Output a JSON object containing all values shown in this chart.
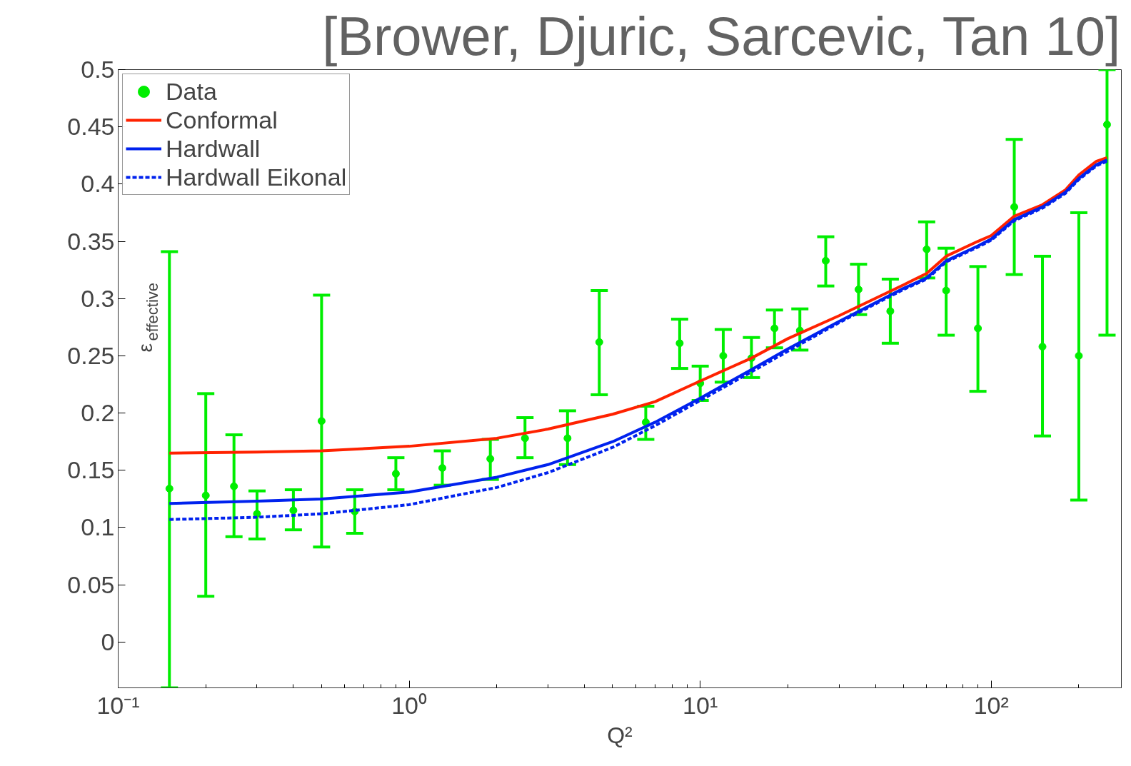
{
  "chart_data": {
    "type": "scatter",
    "title": "[Brower, Djuric, Sarcevic, Tan 10]",
    "xlabel": "Q²",
    "ylabel": "ε$_{effective}$",
    "log": "x",
    "xlim": [
      0.1,
      280
    ],
    "ylim": [
      -0.04,
      0.5
    ],
    "xticks": [
      {
        "value": 0.1,
        "label": "10⁻¹"
      },
      {
        "value": 1,
        "label": "10⁰"
      },
      {
        "value": 10,
        "label": "10¹"
      },
      {
        "value": 100,
        "label": "10²"
      }
    ],
    "yticks": [
      0,
      0.05,
      0.1,
      0.15,
      0.2,
      0.25,
      0.3,
      0.35,
      0.4,
      0.45,
      0.5
    ],
    "grid": false,
    "legend": "top left",
    "series": [
      {
        "name": "Data",
        "marker": "circle",
        "color": "#00ee00",
        "x": [
          0.15,
          0.2,
          0.25,
          0.3,
          0.4,
          0.5,
          0.65,
          0.9,
          1.3,
          1.9,
          2.5,
          3.5,
          4.5,
          6.5,
          8.5,
          10,
          12,
          15,
          18,
          22,
          27,
          35,
          45,
          60,
          70,
          90,
          120,
          150,
          200,
          250
        ],
        "values": [
          0.134,
          0.128,
          0.136,
          0.112,
          0.115,
          0.193,
          0.114,
          0.147,
          0.152,
          0.16,
          0.178,
          0.178,
          0.262,
          0.192,
          0.261,
          0.226,
          0.25,
          0.248,
          0.274,
          0.272,
          0.333,
          0.308,
          0.289,
          0.343,
          0.307,
          0.274,
          0.38,
          0.258,
          0.25,
          0.452
        ],
        "errors": [
          [
            -0.04,
            0.341
          ],
          [
            0.04,
            0.217
          ],
          [
            0.092,
            0.181
          ],
          [
            0.09,
            0.132
          ],
          [
            0.098,
            0.133
          ],
          [
            0.083,
            0.303
          ],
          [
            0.095,
            0.133
          ],
          [
            0.133,
            0.161
          ],
          [
            0.137,
            0.167
          ],
          [
            0.142,
            0.177
          ],
          [
            0.161,
            0.196
          ],
          [
            0.155,
            0.202
          ],
          [
            0.216,
            0.307
          ],
          [
            0.177,
            0.206
          ],
          [
            0.239,
            0.282
          ],
          [
            0.211,
            0.241
          ],
          [
            0.227,
            0.273
          ],
          [
            0.231,
            0.266
          ],
          [
            0.257,
            0.29
          ],
          [
            0.255,
            0.291
          ],
          [
            0.311,
            0.354
          ],
          [
            0.286,
            0.33
          ],
          [
            0.261,
            0.317
          ],
          [
            0.318,
            0.367
          ],
          [
            0.268,
            0.344
          ],
          [
            0.219,
            0.328
          ],
          [
            0.321,
            0.439
          ],
          [
            0.18,
            0.337
          ],
          [
            0.124,
            0.375
          ],
          [
            0.268,
            0.5
          ]
        ]
      },
      {
        "name": "Conformal",
        "type": "line",
        "line_style": "solid",
        "color": "#ff2200",
        "x": [
          0.15,
          0.3,
          0.5,
          1,
          2,
          3,
          5,
          7,
          10,
          15,
          20,
          30,
          50,
          60,
          70,
          90,
          100,
          120,
          150,
          180,
          200,
          230,
          250
        ],
        "values": [
          0.165,
          0.166,
          0.167,
          0.171,
          0.178,
          0.186,
          0.199,
          0.21,
          0.228,
          0.248,
          0.265,
          0.285,
          0.312,
          0.322,
          0.337,
          0.35,
          0.355,
          0.372,
          0.382,
          0.395,
          0.408,
          0.42,
          0.423
        ]
      },
      {
        "name": "Hardwall",
        "type": "line",
        "line_style": "solid",
        "color": "#0022ee",
        "x": [
          0.15,
          0.3,
          0.5,
          1,
          2,
          3,
          5,
          7,
          10,
          15,
          20,
          30,
          50,
          60,
          70,
          90,
          100,
          120,
          150,
          180,
          200,
          230,
          250
        ],
        "values": [
          0.121,
          0.123,
          0.125,
          0.131,
          0.144,
          0.155,
          0.175,
          0.192,
          0.213,
          0.238,
          0.256,
          0.28,
          0.309,
          0.318,
          0.333,
          0.346,
          0.352,
          0.369,
          0.38,
          0.393,
          0.405,
          0.417,
          0.421
        ]
      },
      {
        "name": "Hardwall Eikonal",
        "type": "line",
        "line_style": "dashed",
        "color": "#0022ee",
        "x": [
          0.15,
          0.3,
          0.5,
          1,
          2,
          3,
          5,
          7,
          10,
          15,
          20,
          30,
          50,
          60,
          70,
          90,
          100,
          120,
          150,
          180,
          200,
          230,
          250
        ],
        "values": [
          0.107,
          0.109,
          0.112,
          0.12,
          0.135,
          0.148,
          0.17,
          0.189,
          0.211,
          0.236,
          0.254,
          0.279,
          0.308,
          0.317,
          0.332,
          0.345,
          0.351,
          0.368,
          0.379,
          0.392,
          0.404,
          0.416,
          0.42
        ]
      }
    ]
  }
}
